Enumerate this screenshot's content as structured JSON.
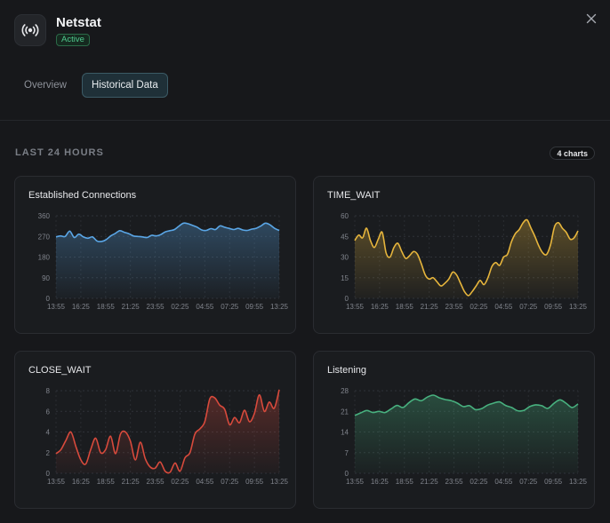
{
  "app": {
    "title": "Netstat",
    "status": "Active",
    "icon": "broadcast-icon"
  },
  "tabs": [
    {
      "label": "Overview"
    },
    {
      "label": "Historical Data"
    }
  ],
  "section": {
    "title": "LAST 24 HOURS",
    "count": "4 charts"
  },
  "chart_data": [
    {
      "type": "area",
      "title": "Established Connections",
      "color": "#5aa6e6",
      "ylim": [
        0,
        360
      ],
      "yticks": [
        "0",
        "90",
        "180",
        "270",
        "360"
      ],
      "xticks": [
        "13:55",
        "16:25",
        "18:55",
        "21:25",
        "23:55",
        "02:25",
        "04:55",
        "07:25",
        "09:55",
        "13:25"
      ],
      "values": [
        268,
        272,
        270,
        293,
        265,
        280,
        268,
        262,
        268,
        250,
        248,
        256,
        272,
        283,
        295,
        288,
        282,
        272,
        270,
        268,
        265,
        275,
        272,
        278,
        290,
        295,
        300,
        315,
        328,
        325,
        318,
        310,
        298,
        296,
        304,
        300,
        316,
        310,
        305,
        300,
        305,
        298,
        296,
        302,
        306,
        316,
        328,
        320,
        305,
        296
      ]
    },
    {
      "type": "area",
      "title": "TIME_WAIT",
      "color": "#e6b53c",
      "ylim": [
        0,
        60
      ],
      "yticks": [
        "0",
        "15",
        "30",
        "45",
        "60"
      ],
      "xticks": [
        "13:55",
        "16:25",
        "18:55",
        "21:25",
        "23:55",
        "02:25",
        "04:55",
        "07:25",
        "09:55",
        "13:25"
      ],
      "values": [
        42,
        46,
        44,
        51,
        42,
        37,
        43,
        48,
        33,
        30,
        37,
        40,
        34,
        29,
        31,
        34,
        32,
        25,
        17,
        14,
        15,
        12,
        9,
        11,
        14,
        19,
        17,
        11,
        5,
        2,
        5,
        9,
        13,
        10,
        15,
        23,
        26,
        24,
        30,
        32,
        41,
        47,
        50,
        55,
        57,
        51,
        45,
        38,
        33,
        32,
        39,
        52,
        55,
        51,
        48,
        43,
        44,
        49
      ]
    },
    {
      "type": "area",
      "title": "CLOSE_WAIT",
      "color": "#d84a3c",
      "ylim": [
        0,
        8
      ],
      "yticks": [
        "0",
        "2",
        "4",
        "6",
        "8"
      ],
      "xticks": [
        "13:55",
        "16:25",
        "18:55",
        "21:25",
        "23:55",
        "02:25",
        "04:55",
        "07:25",
        "09:55",
        "13:25"
      ],
      "values": [
        1.9,
        2.3,
        3.2,
        4.0,
        2.6,
        1.3,
        0.9,
        2.3,
        3.4,
        2.0,
        2.3,
        3.6,
        1.9,
        3.8,
        4.0,
        3.1,
        1.3,
        3.0,
        1.4,
        0.6,
        0.5,
        1.1,
        0.2,
        0.1,
        1.0,
        0.2,
        1.5,
        2.0,
        3.8,
        4.3,
        5.0,
        7.2,
        7.3,
        6.6,
        6.2,
        4.7,
        5.4,
        4.9,
        6.1,
        5.0,
        5.8,
        7.6,
        6.0,
        6.9,
        6.3,
        8.1
      ]
    },
    {
      "type": "area",
      "title": "Listening",
      "color": "#48b17f",
      "ylim": [
        0,
        28
      ],
      "yticks": [
        "0",
        "7",
        "14",
        "21",
        "28"
      ],
      "xticks": [
        "13:55",
        "16:25",
        "18:55",
        "21:25",
        "23:55",
        "02:25",
        "04:55",
        "07:25",
        "09:55",
        "13:25"
      ],
      "values": [
        19.6,
        20.5,
        21.3,
        20.6,
        21.0,
        20.6,
        21.8,
        23.0,
        22.3,
        24.0,
        25.2,
        24.6,
        25.8,
        26.5,
        25.6,
        25.0,
        24.6,
        23.8,
        22.6,
        22.9,
        21.6,
        21.9,
        23.1,
        23.8,
        24.2,
        23.0,
        22.3,
        21.2,
        21.3,
        22.6,
        23.2,
        22.9,
        22.0,
        23.7,
        24.9,
        23.8,
        22.3,
        23.5
      ]
    }
  ]
}
